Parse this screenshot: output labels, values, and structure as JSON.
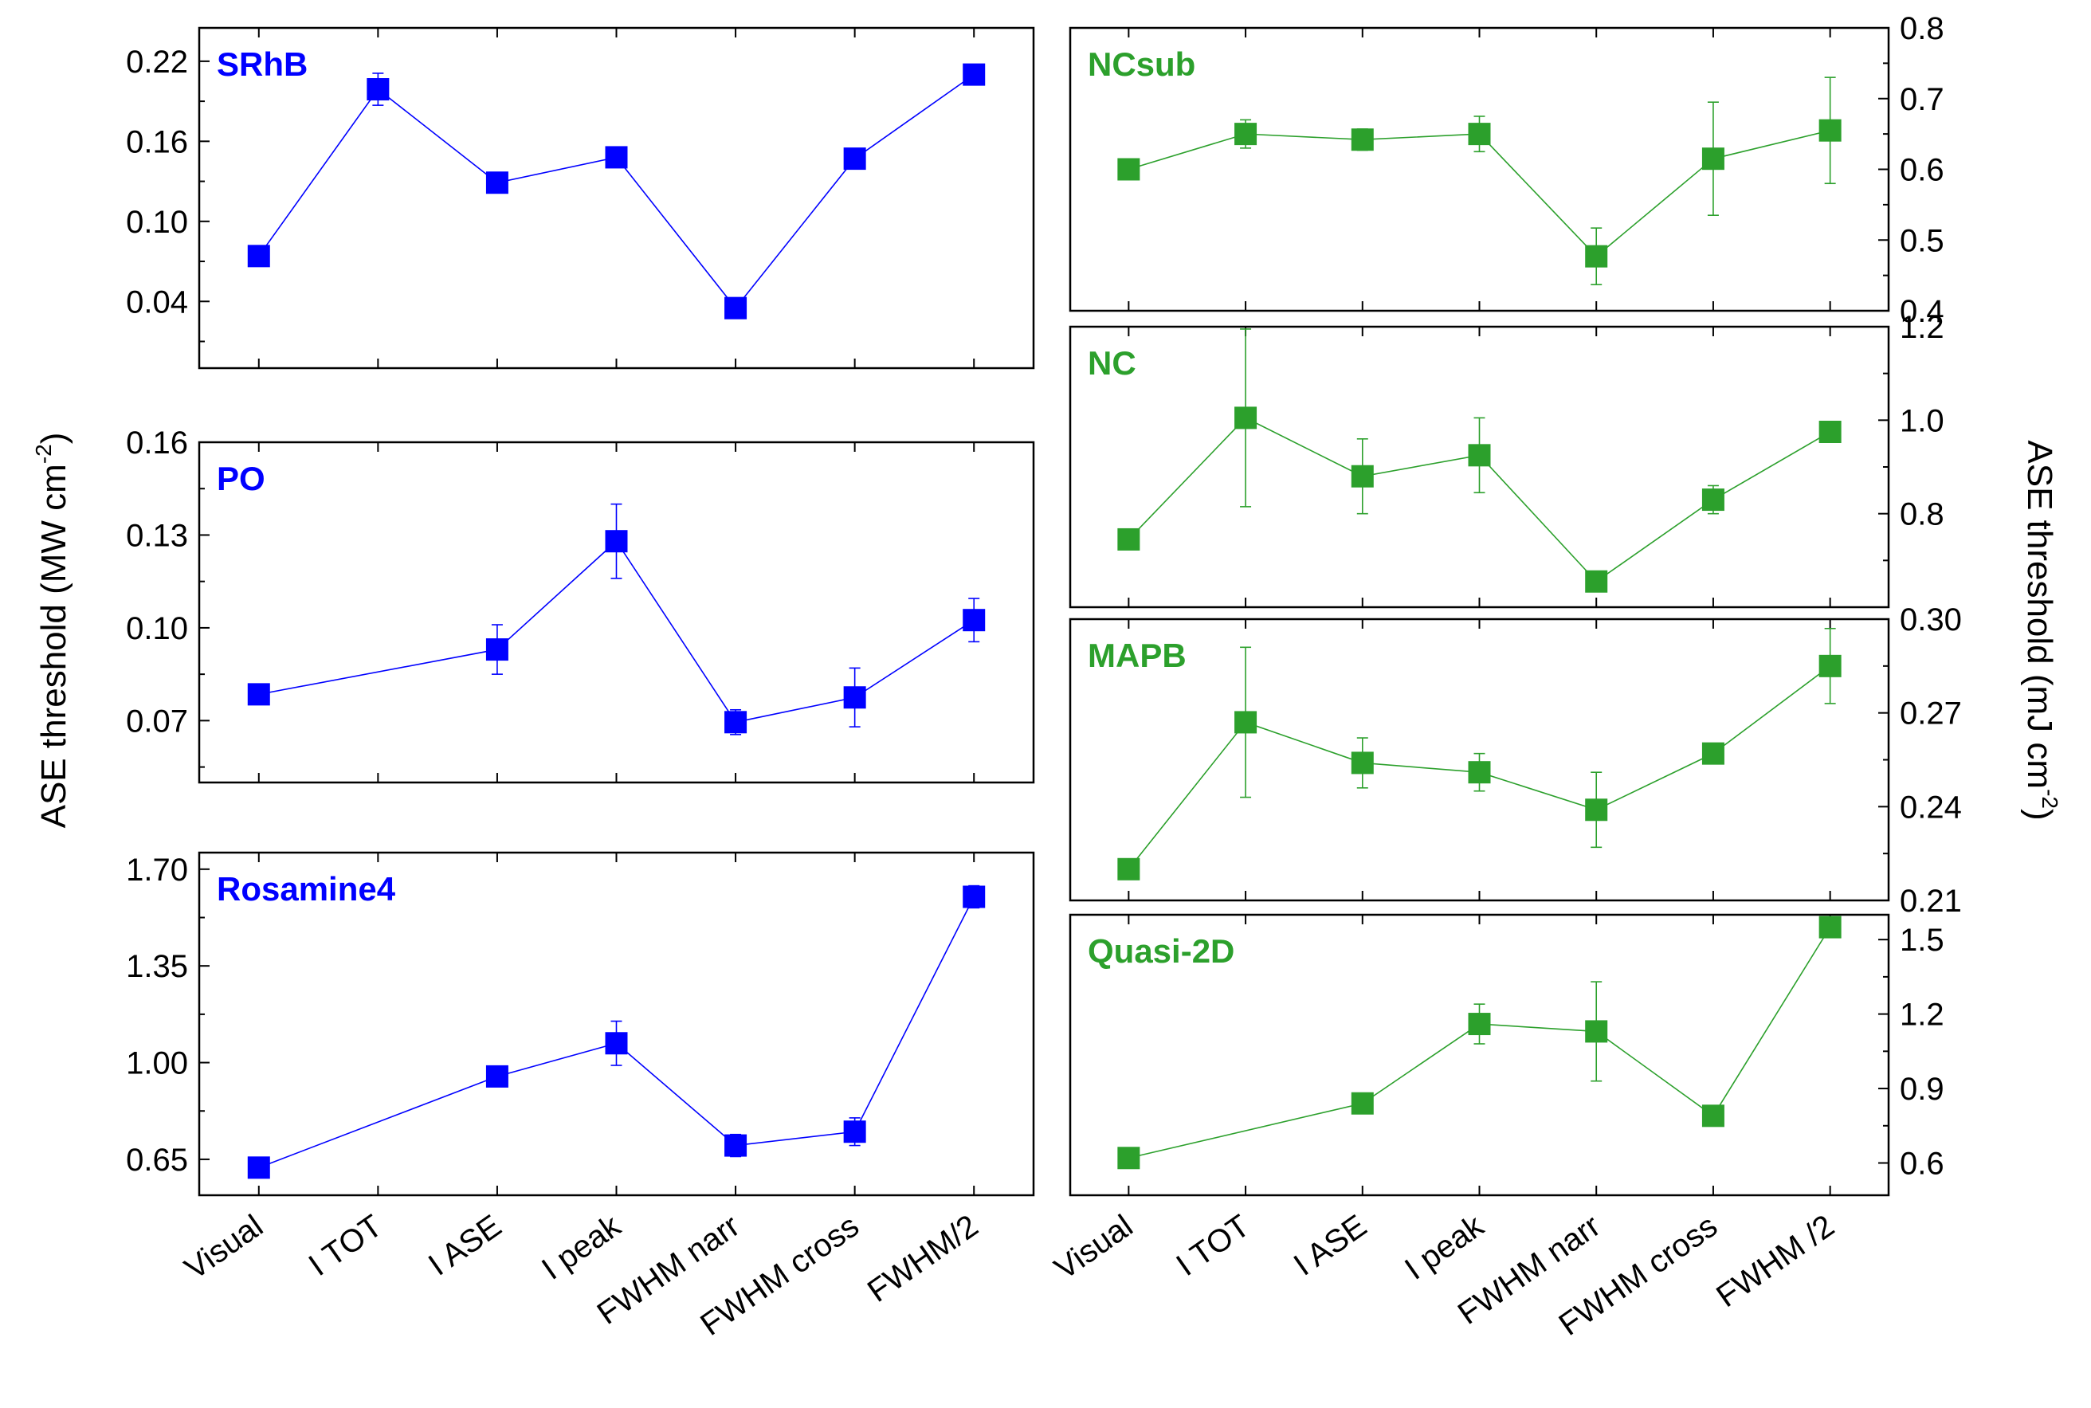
{
  "figure": {
    "left_axis_label": "ASE threshold (MW cm",
    "left_axis_unit_exponent": "-2",
    "left_axis_label_end": ")",
    "right_axis_label": "ASE threshold (mJ cm",
    "right_axis_unit_exponent": "-2",
    "right_axis_label_end": ")"
  },
  "colors": {
    "left_series": "#0000ff",
    "right_series": "#2ca02c",
    "frame": "#000000"
  },
  "x_labels_left": [
    "Visual",
    "I TOT",
    "I ASE",
    "I peak",
    "FWHM narr",
    "FWHM cross",
    "FWHM/2"
  ],
  "x_labels_right": [
    "Visual",
    "I TOT",
    "I ASE",
    "I peak",
    "FWHM narr",
    "FWHM cross",
    "FWHM /2"
  ],
  "chart_data": [
    {
      "type": "line",
      "title": "SRhB",
      "column": "left",
      "categories": [
        "Visual",
        "I TOT",
        "I ASE",
        "I peak",
        "FWHM narr",
        "FWHM cross",
        "FWHM/2"
      ],
      "x": [
        1,
        2,
        3,
        4,
        5,
        6,
        7
      ],
      "values": [
        0.074,
        0.199,
        0.129,
        0.148,
        0.035,
        0.147,
        0.21
      ],
      "errors": [
        0,
        0.012,
        0.004,
        0.005,
        0.004,
        0.004,
        0.004
      ],
      "ylim": [
        -0.01,
        0.245
      ],
      "yticks": [
        "0.04",
        "0.10",
        "0.16",
        "0.22"
      ],
      "ytick_values": [
        0.04,
        0.1,
        0.16,
        0.22
      ],
      "xlim": [
        0.5,
        7.5
      ]
    },
    {
      "type": "line",
      "title": "PO",
      "column": "left",
      "categories": [
        "Visual",
        "I TOT",
        "I ASE",
        "I peak",
        "FWHM narr",
        "FWHM cross",
        "FWHM/2"
      ],
      "x": [
        1,
        3,
        4,
        5,
        6,
        7
      ],
      "values": [
        0.0785,
        0.093,
        0.128,
        0.0695,
        0.0775,
        0.1025
      ],
      "errors": [
        0,
        0.008,
        0.012,
        0.004,
        0.0095,
        0.007
      ],
      "ylim": [
        0.05,
        0.16
      ],
      "yticks": [
        "0.07",
        "0.10",
        "0.13",
        "0.16"
      ],
      "ytick_values": [
        0.07,
        0.1,
        0.13,
        0.16
      ],
      "xlim": [
        0.5,
        7.5
      ]
    },
    {
      "type": "line",
      "title": "Rosamine4",
      "column": "left",
      "categories": [
        "Visual",
        "I TOT",
        "I ASE",
        "I peak",
        "FWHM narr",
        "FWHM cross",
        "FWHM/2"
      ],
      "x": [
        1,
        3,
        4,
        5,
        6,
        7
      ],
      "values": [
        0.62,
        0.95,
        1.07,
        0.7,
        0.75,
        1.6
      ],
      "errors": [
        0,
        0.02,
        0.08,
        0.04,
        0.05,
        0.04
      ],
      "ylim": [
        0.52,
        1.76
      ],
      "yticks": [
        "0.65",
        "1.00",
        "1.35",
        "1.70"
      ],
      "ytick_values": [
        0.65,
        1.0,
        1.35,
        1.7
      ],
      "xlim": [
        0.5,
        7.5
      ]
    },
    {
      "type": "line",
      "title": "NCsub",
      "column": "right",
      "categories": [
        "Visual",
        "I TOT",
        "I ASE",
        "I peak",
        "FWHM narr",
        "FWHM cross",
        "FWHM /2"
      ],
      "x": [
        1,
        2,
        3,
        4,
        5,
        6,
        7
      ],
      "values": [
        0.6,
        0.65,
        0.642,
        0.65,
        0.477,
        0.615,
        0.655
      ],
      "errors": [
        0,
        0.02,
        0.015,
        0.025,
        0.04,
        0.08,
        0.075
      ],
      "ylim": [
        0.4,
        0.8
      ],
      "yticks": [
        "0.4",
        "0.5",
        "0.6",
        "0.7",
        "0.8"
      ],
      "ytick_values": [
        0.4,
        0.5,
        0.6,
        0.7,
        0.8
      ],
      "xlim": [
        0.5,
        7.5
      ]
    },
    {
      "type": "line",
      "title": "NC",
      "column": "right",
      "categories": [
        "Visual",
        "I TOT",
        "I ASE",
        "I peak",
        "FWHM narr",
        "FWHM cross",
        "FWHM /2"
      ],
      "x": [
        1,
        2,
        3,
        4,
        5,
        6,
        7
      ],
      "values": [
        0.745,
        1.005,
        0.88,
        0.925,
        0.655,
        0.83,
        0.975
      ],
      "errors": [
        0,
        0.19,
        0.08,
        0.08,
        0.015,
        0.03,
        0.02
      ],
      "ylim": [
        0.6,
        1.2
      ],
      "yticks": [
        "0.8",
        "1.0",
        "1.2"
      ],
      "ytick_values": [
        0.8,
        1.0,
        1.2
      ],
      "xlim": [
        0.5,
        7.5
      ]
    },
    {
      "type": "line",
      "title": "MAPB",
      "column": "right",
      "categories": [
        "Visual",
        "I TOT",
        "I ASE",
        "I peak",
        "FWHM narr",
        "FWHM cross",
        "FWHM /2"
      ],
      "x": [
        1,
        2,
        3,
        4,
        5,
        6,
        7
      ],
      "values": [
        0.22,
        0.267,
        0.254,
        0.251,
        0.239,
        0.257,
        0.285
      ],
      "errors": [
        0,
        0.024,
        0.008,
        0.006,
        0.012,
        0.002,
        0.012
      ],
      "ylim": [
        0.21,
        0.3
      ],
      "yticks": [
        "0.21",
        "0.24",
        "0.27",
        "0.30"
      ],
      "ytick_values": [
        0.21,
        0.24,
        0.27,
        0.3
      ],
      "xlim": [
        0.5,
        7.5
      ]
    },
    {
      "type": "line",
      "title": "Quasi-2D",
      "column": "right",
      "categories": [
        "Visual",
        "I TOT",
        "I ASE",
        "I peak",
        "FWHM narr",
        "FWHM cross",
        "FWHM /2"
      ],
      "x": [
        1,
        3,
        4,
        5,
        6,
        7
      ],
      "values": [
        0.62,
        0.84,
        1.16,
        1.13,
        0.79,
        1.55
      ],
      "errors": [
        0,
        0.04,
        0.08,
        0.2,
        0.03,
        0
      ],
      "ylim": [
        0.47,
        1.6
      ],
      "yticks": [
        "0.6",
        "0.9",
        "1.2",
        "1.5"
      ],
      "ytick_values": [
        0.6,
        0.9,
        1.2,
        1.5
      ],
      "xlim": [
        0.5,
        7.5
      ]
    }
  ]
}
